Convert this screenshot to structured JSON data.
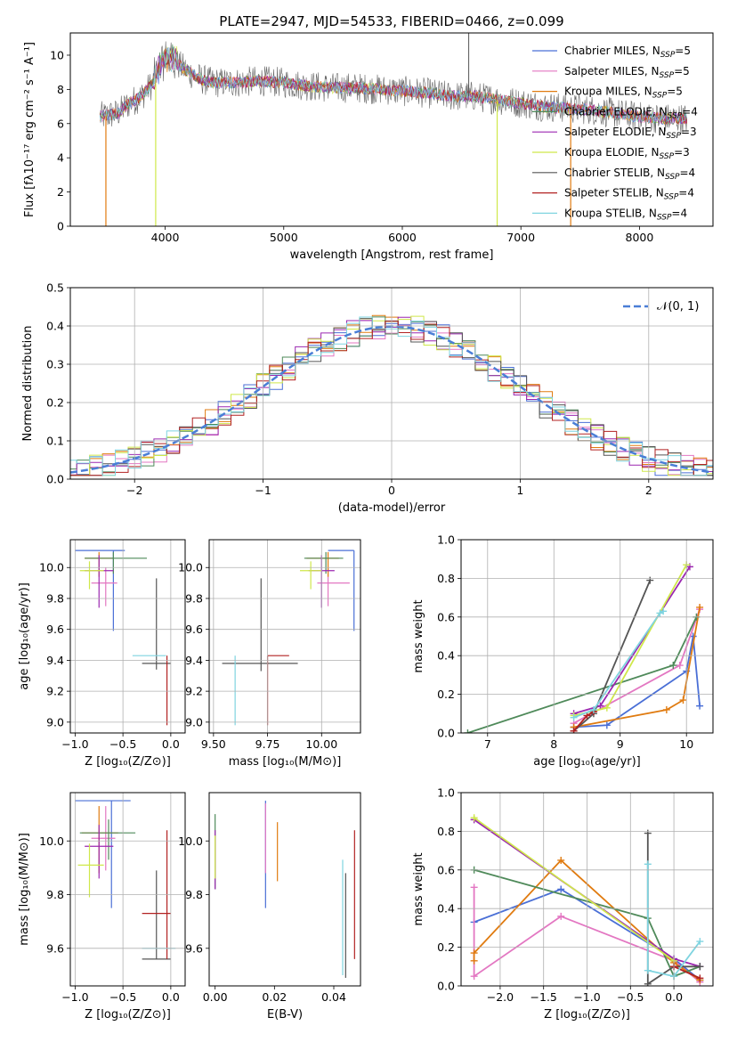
{
  "chart_data": [
    {
      "id": "spectrum",
      "type": "line",
      "title": "PLATE=2947, MJD=54533, FIBERID=0466, z=0.099",
      "xlabel": "wavelength [Angstrom, rest frame]",
      "ylabel": "Flux [fλ10⁻¹⁷ erg cm⁻² s⁻¹ A⁻¹]",
      "xlim": [
        3200,
        8620
      ],
      "ylim": [
        0,
        11.3
      ],
      "xticks": [
        4000,
        5000,
        6000,
        7000,
        8000
      ],
      "yticks": [
        0,
        2,
        4,
        6,
        8,
        10
      ],
      "grid": false,
      "legend": "top-right",
      "series": [
        {
          "name": "Chabrier MILES, N_SSP=5",
          "color": "#4a6fd6"
        },
        {
          "name": "Salpeter MILES, N_SSP=5",
          "color": "#e377c2"
        },
        {
          "name": "Kroupa MILES, N_SSP=5",
          "color": "#e07b10"
        },
        {
          "name": "Chabrier ELODIE, N_SSP=4",
          "color": "#4f8a5a"
        },
        {
          "name": "Salpeter ELODIE, N_SSP=3",
          "color": "#9b27b0"
        },
        {
          "name": "Kroupa ELODIE, N_SSP=3",
          "color": "#cfe84a"
        },
        {
          "name": "Chabrier STELIB, N_SSP=4",
          "color": "#555555"
        },
        {
          "name": "Salpeter STELIB, N_SSP=4",
          "color": "#b22222"
        },
        {
          "name": "Kroupa STELIB, N_SSP=4",
          "color": "#7fd4e0"
        }
      ],
      "continuum": {
        "x": [
          3450,
          3600,
          3700,
          3800,
          3900,
          4000,
          4100,
          4200,
          4300,
          4400,
          4600,
          4800,
          5000,
          5200,
          5400,
          5600,
          5800,
          6000,
          6200,
          6400,
          6600,
          6800,
          7000,
          7200,
          7400,
          7600,
          7800,
          8000,
          8200,
          8400
        ],
        "y": [
          6.4,
          6.6,
          7.2,
          7.6,
          8.4,
          9.6,
          9.5,
          9.0,
          8.6,
          8.4,
          8.4,
          8.5,
          8.4,
          8.2,
          8.1,
          8.1,
          8.0,
          7.9,
          7.8,
          7.6,
          7.6,
          7.4,
          7.2,
          7.0,
          6.9,
          6.8,
          6.6,
          6.4,
          6.3,
          6.3
        ]
      },
      "dips": [
        {
          "x": 3500,
          "y": 0.0,
          "color": "#e07b10"
        },
        {
          "x": 3920,
          "y": 0.0,
          "color": "#cfe84a"
        },
        {
          "x": 6800,
          "y": 0.0,
          "color": "#cfe84a"
        },
        {
          "x": 7420,
          "y": 0.0,
          "color": "#e07b10"
        }
      ],
      "spikes": [
        {
          "x": 6560,
          "y": 11.3,
          "color": "#555555"
        }
      ]
    },
    {
      "id": "residuals",
      "type": "histogram",
      "xlabel": "(data-model)/error",
      "ylabel": "Normed distribution",
      "xlim": [
        -2.5,
        2.5
      ],
      "ylim": [
        0,
        0.5
      ],
      "xticks": [
        -2,
        -1,
        0,
        1,
        2
      ],
      "yticks": [
        0.0,
        0.1,
        0.2,
        0.3,
        0.4,
        0.5
      ],
      "grid": true,
      "legend": "top-right",
      "legend_label": "𝒩(0, 1)",
      "gaussian": {
        "mu": 0,
        "sigma": 1,
        "color": "#4a7ed6"
      },
      "bin_width": 0.1
    },
    {
      "id": "age_vs_Z",
      "type": "errorbar",
      "xlabel": "Z [log₁₀(Z/Z⊙)]",
      "ylabel": "age  [log₁₀(age/yr)]",
      "xlim": [
        -1.05,
        0.15
      ],
      "ylim": [
        8.93,
        10.18
      ],
      "xticks": [
        -1.0,
        -0.5,
        0.0
      ],
      "yticks": [
        9.0,
        9.2,
        9.4,
        9.6,
        9.8,
        10.0
      ],
      "grid": true,
      "points": [
        {
          "x": -0.6,
          "xerr": [
            0.4,
            0.12
          ],
          "y": 10.11,
          "yerr": [
            0.52,
            0.0
          ],
          "color": "#4a6fd6"
        },
        {
          "x": -0.68,
          "xerr": [
            0.15,
            0.12
          ],
          "y": 9.9,
          "yerr": [
            0.15,
            0.1
          ],
          "color": "#e377c2"
        },
        {
          "x": -0.75,
          "xerr": [
            0.15,
            0.15
          ],
          "y": 10.06,
          "yerr": [
            0.12,
            0.04
          ],
          "color": "#e07b10"
        },
        {
          "x": -0.6,
          "xerr": [
            0.3,
            0.35
          ],
          "y": 10.06,
          "yerr": [
            0.1,
            0.04
          ],
          "color": "#4f8a5a"
        },
        {
          "x": -0.75,
          "xerr": [
            0.15,
            0.15
          ],
          "y": 9.98,
          "yerr": [
            0.24,
            0.1
          ],
          "color": "#9b27b0"
        },
        {
          "x": -0.85,
          "xerr": [
            0.1,
            0.15
          ],
          "y": 9.98,
          "yerr": [
            0.12,
            0.06
          ],
          "color": "#cfe84a"
        },
        {
          "x": -0.15,
          "xerr": [
            0.15,
            0.15
          ],
          "y": 9.38,
          "yerr": [
            0.04,
            0.55
          ],
          "color": "#555555"
        },
        {
          "x": -0.04,
          "xerr": [
            0.0,
            0.0
          ],
          "y": 9.43,
          "yerr": [
            0.45,
            0.0
          ],
          "color": "#b22222"
        },
        {
          "x": -0.2,
          "xerr": [
            0.2,
            0.15
          ],
          "y": 9.43,
          "yerr": [
            0.0,
            0.0
          ],
          "color": "#7fd4e0"
        }
      ]
    },
    {
      "id": "age_vs_mass",
      "type": "errorbar",
      "xlabel": "mass [log₁₀(M/M⊙)]",
      "xlim": [
        9.48,
        10.18
      ],
      "ylim": [
        8.93,
        10.18
      ],
      "xticks": [
        9.5,
        9.75,
        10.0
      ],
      "yticks": [
        9.0,
        9.2,
        9.4,
        9.6,
        9.8,
        10.0
      ],
      "grid": true,
      "points": [
        {
          "x": 10.15,
          "xerr": [
            0.12,
            0.0
          ],
          "y": 10.11,
          "yerr": [
            0.52,
            0.0
          ],
          "color": "#4a6fd6"
        },
        {
          "x": 10.03,
          "xerr": [
            0.05,
            0.1
          ],
          "y": 9.9,
          "yerr": [
            0.15,
            0.1
          ],
          "color": "#e377c2"
        },
        {
          "x": 10.03,
          "xerr": [
            0.1,
            0.05
          ],
          "y": 10.06,
          "yerr": [
            0.12,
            0.04
          ],
          "color": "#e07b10"
        },
        {
          "x": 10.02,
          "xerr": [
            0.1,
            0.08
          ],
          "y": 10.06,
          "yerr": [
            0.1,
            0.04
          ],
          "color": "#4f8a5a"
        },
        {
          "x": 10.0,
          "xerr": [
            0.06,
            0.06
          ],
          "y": 9.98,
          "yerr": [
            0.24,
            0.1
          ],
          "color": "#9b27b0"
        },
        {
          "x": 9.95,
          "xerr": [
            0.05,
            0.05
          ],
          "y": 9.98,
          "yerr": [
            0.12,
            0.06
          ],
          "color": "#cfe84a"
        },
        {
          "x": 9.72,
          "xerr": [
            0.18,
            0.17
          ],
          "y": 9.38,
          "yerr": [
            0.05,
            0.55
          ],
          "color": "#555555"
        },
        {
          "x": 9.75,
          "xerr": [
            0.0,
            0.1
          ],
          "y": 9.43,
          "yerr": [
            0.45,
            0.0
          ],
          "color": "#b22222"
        },
        {
          "x": 9.6,
          "xerr": [
            0.0,
            0.0
          ],
          "y": 9.43,
          "yerr": [
            0.45,
            0.0
          ],
          "color": "#7fd4e0"
        }
      ]
    },
    {
      "id": "massweight_vs_age",
      "type": "line",
      "xlabel": "age  [log₁₀(age/yr)]",
      "ylabel": "mass weight",
      "xlim": [
        6.6,
        10.4
      ],
      "ylim": [
        0.0,
        1.0
      ],
      "xticks": [
        7,
        8,
        9,
        10
      ],
      "yticks": [
        0.0,
        0.2,
        0.4,
        0.6,
        0.8,
        1.0
      ],
      "grid": true,
      "series": [
        {
          "color": "#4a6fd6",
          "x": [
            8.3,
            8.8,
            10.0,
            10.1,
            10.2
          ],
          "y": [
            0.03,
            0.04,
            0.32,
            0.5,
            0.14
          ]
        },
        {
          "color": "#e377c2",
          "x": [
            8.3,
            9.9,
            10.2
          ],
          "y": [
            0.05,
            0.35,
            0.64
          ]
        },
        {
          "color": "#e07b10",
          "x": [
            8.3,
            9.7,
            9.95,
            10.2
          ],
          "y": [
            0.03,
            0.12,
            0.17,
            0.65
          ]
        },
        {
          "color": "#4f8a5a",
          "x": [
            6.7,
            9.8,
            10.15
          ],
          "y": [
            0.0,
            0.35,
            0.6
          ]
        },
        {
          "color": "#9b27b0",
          "x": [
            8.3,
            8.7,
            10.05
          ],
          "y": [
            0.1,
            0.14,
            0.86
          ]
        },
        {
          "color": "#cfe84a",
          "x": [
            8.3,
            8.8,
            10.0
          ],
          "y": [
            0.09,
            0.13,
            0.87
          ]
        },
        {
          "color": "#555555",
          "x": [
            8.3,
            8.6,
            9.45
          ],
          "y": [
            0.01,
            0.1,
            0.79
          ]
        },
        {
          "color": "#b22222",
          "x": [
            8.3,
            8.5,
            8.6
          ],
          "y": [
            0.01,
            0.09,
            0.11
          ]
        },
        {
          "color": "#7fd4e0",
          "x": [
            8.3,
            8.6,
            9.6,
            9.65
          ],
          "y": [
            0.08,
            0.12,
            0.62,
            0.63
          ]
        }
      ]
    },
    {
      "id": "mass_vs_Z",
      "type": "errorbar",
      "xlabel": "Z [log₁₀(Z/Z⊙)]",
      "ylabel": "mass [log₁₀(M/M⊙)]",
      "xlim": [
        -1.05,
        0.15
      ],
      "ylim": [
        9.46,
        10.18
      ],
      "xticks": [
        -1.0,
        -0.5,
        0.0
      ],
      "yticks": [
        9.6,
        9.8,
        10.0
      ],
      "grid": true,
      "points": [
        {
          "x": -0.62,
          "xerr": [
            0.38,
            0.2
          ],
          "y": 10.15,
          "yerr": [
            0.4,
            0.0
          ],
          "color": "#4a6fd6"
        },
        {
          "x": -0.68,
          "xerr": [
            0.15,
            0.1
          ],
          "y": 10.01,
          "yerr": [
            0.12,
            0.12
          ],
          "color": "#e377c2"
        },
        {
          "x": -0.75,
          "xerr": [
            0.18,
            0.2
          ],
          "y": 10.03,
          "yerr": [
            0.15,
            0.1
          ],
          "color": "#e07b10"
        },
        {
          "x": -0.65,
          "xerr": [
            0.3,
            0.28
          ],
          "y": 10.03,
          "yerr": [
            0.1,
            0.05
          ],
          "color": "#4f8a5a"
        },
        {
          "x": -0.75,
          "xerr": [
            0.15,
            0.15
          ],
          "y": 9.98,
          "yerr": [
            0.12,
            0.08
          ],
          "color": "#9b27b0"
        },
        {
          "x": -0.85,
          "xerr": [
            0.12,
            0.15
          ],
          "y": 9.91,
          "yerr": [
            0.12,
            0.08
          ],
          "color": "#cfe84a"
        },
        {
          "x": -0.15,
          "xerr": [
            0.15,
            0.15
          ],
          "y": 9.56,
          "yerr": [
            0.0,
            0.33
          ],
          "color": "#555555"
        },
        {
          "x": -0.15,
          "xerr": [
            0.15,
            0.15
          ],
          "y": 9.73,
          "yerr": [
            0.0,
            0.0
          ],
          "color": "#b22222"
        },
        {
          "x": -0.04,
          "xerr": [
            0.0,
            0.0
          ],
          "y": 9.73,
          "yerr": [
            0.17,
            0.31
          ],
          "color": "#b22222"
        },
        {
          "x": -0.15,
          "xerr": [
            0.15,
            0.2
          ],
          "y": 9.6,
          "yerr": [
            0.0,
            0.0
          ],
          "color": "#7fd4e0"
        }
      ]
    },
    {
      "id": "mass_vs_ebv",
      "type": "errorbar",
      "xlabel": "E(B-V)",
      "xlim": [
        -0.002,
        0.049
      ],
      "ylim": [
        9.46,
        10.18
      ],
      "xticks": [
        0.0,
        0.02,
        0.04
      ],
      "yticks": [
        9.6,
        9.8,
        10.0
      ],
      "grid": false,
      "points": [
        {
          "x": 0.0,
          "y": 9.9,
          "yerr": [
            0.08,
            0.2
          ],
          "color": "#4f8a5a"
        },
        {
          "x": 0.0,
          "y": 9.88,
          "yerr": [
            0.06,
            0.16
          ],
          "color": "#9b27b0"
        },
        {
          "x": 0.0,
          "y": 9.92,
          "yerr": [
            0.06,
            0.1
          ],
          "color": "#cfe84a"
        },
        {
          "x": 0.017,
          "y": 9.95,
          "yerr": [
            0.2,
            0.2
          ],
          "color": "#4a6fd6"
        },
        {
          "x": 0.017,
          "y": 10.0,
          "yerr": [
            0.12,
            0.14
          ],
          "color": "#e377c2"
        },
        {
          "x": 0.021,
          "y": 9.95,
          "yerr": [
            0.1,
            0.12
          ],
          "color": "#e07b10"
        },
        {
          "x": 0.043,
          "y": 9.7,
          "yerr": [
            0.2,
            0.23
          ],
          "color": "#7fd4e0"
        },
        {
          "x": 0.044,
          "y": 9.7,
          "yerr": [
            0.21,
            0.18
          ],
          "color": "#555555"
        },
        {
          "x": 0.047,
          "y": 9.8,
          "yerr": [
            0.24,
            0.24
          ],
          "color": "#b22222"
        }
      ]
    },
    {
      "id": "massweight_vs_Z",
      "type": "line",
      "xlabel": "Z [log₁₀(Z/Z⊙)]",
      "ylabel": "mass weight",
      "xlim": [
        -2.45,
        0.45
      ],
      "ylim": [
        0.0,
        1.0
      ],
      "xticks": [
        -2.0,
        -1.5,
        -1.0,
        -0.5,
        0.0
      ],
      "yticks": [
        0.0,
        0.2,
        0.4,
        0.6,
        0.8,
        1.0
      ],
      "grid": true,
      "series": [
        {
          "color": "#4a6fd6",
          "x": [
            -2.3,
            -1.3,
            0.0,
            0.3
          ],
          "y": [
            0.33,
            0.5,
            0.14,
            0.03
          ]
        },
        {
          "color": "#e377c2",
          "x": [
            -2.3,
            -2.3,
            -1.3,
            0.0,
            0.3
          ],
          "y": [
            0.51,
            0.05,
            0.36,
            0.13,
            0.02
          ]
        },
        {
          "color": "#e07b10",
          "x": [
            -2.3,
            -2.3,
            -1.3,
            0.0,
            0.3
          ],
          "y": [
            0.13,
            0.17,
            0.65,
            0.12,
            0.03
          ]
        },
        {
          "color": "#4f8a5a",
          "x": [
            -2.3,
            -0.3,
            0.0,
            0.3
          ],
          "y": [
            0.6,
            0.35,
            0.05,
            0.1
          ]
        },
        {
          "color": "#9b27b0",
          "x": [
            -2.3,
            0.0,
            0.3
          ],
          "y": [
            0.86,
            0.14,
            0.1
          ]
        },
        {
          "color": "#cfe84a",
          "x": [
            -2.3,
            0.0
          ],
          "y": [
            0.87,
            0.13
          ]
        },
        {
          "color": "#555555",
          "x": [
            -0.3,
            -0.3,
            0.0,
            0.3
          ],
          "y": [
            0.79,
            0.01,
            0.1,
            0.1
          ]
        },
        {
          "color": "#b22222",
          "x": [
            0.0,
            0.3
          ],
          "y": [
            0.1,
            0.04
          ]
        },
        {
          "color": "#7fd4e0",
          "x": [
            -0.3,
            -0.3,
            0.0,
            0.3
          ],
          "y": [
            0.63,
            0.08,
            0.05,
            0.23
          ]
        }
      ]
    }
  ]
}
